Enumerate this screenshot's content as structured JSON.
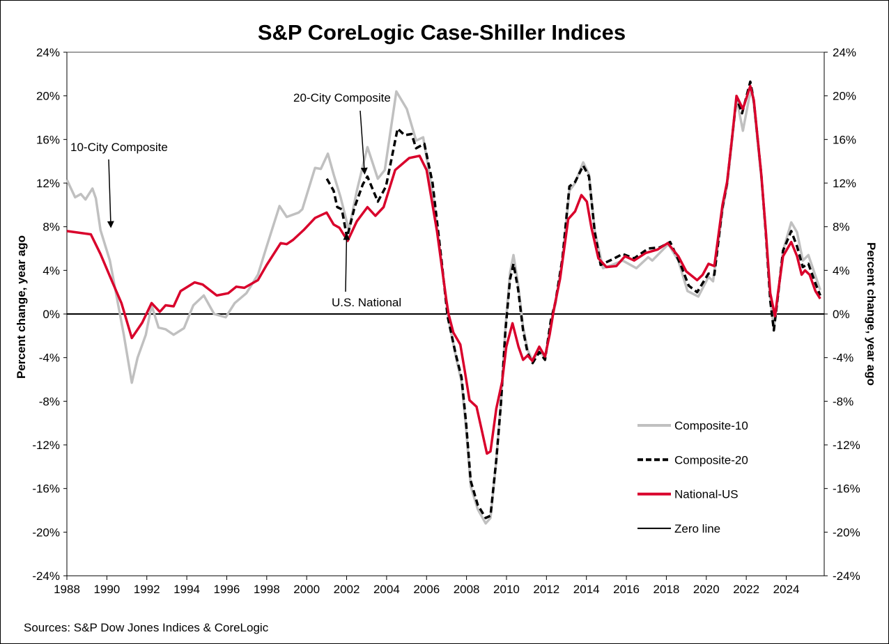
{
  "chart_data": {
    "type": "line",
    "title": "S&P CoreLogic Case-Shiller Indices",
    "ylabel_left": "Percent change, year ago",
    "ylabel_right": "Percent change, year ago",
    "source": "Sources:  S&P Dow Jones Indices & CoreLogic",
    "xlim": [
      1988,
      2025.9
    ],
    "ylim": [
      -24,
      24
    ],
    "x_ticks": [
      1988,
      1990,
      1992,
      1994,
      1996,
      1998,
      2000,
      2002,
      2004,
      2006,
      2008,
      2010,
      2012,
      2014,
      2016,
      2018,
      2020,
      2022,
      2024
    ],
    "y_ticks": [
      -24,
      -20,
      -16,
      -12,
      -8,
      -4,
      0,
      4,
      8,
      12,
      16,
      20,
      24
    ],
    "y_tick_format": "%",
    "grid": false,
    "legend_position": "bottom-right",
    "annotations": [
      {
        "text": "10-City Composite",
        "points_to": [
          1990.2,
          8.0
        ]
      },
      {
        "text": "20-City Composite",
        "points_to": [
          2002.9,
          12.9
        ]
      },
      {
        "text": "U.S. National",
        "points_to": [
          2002.0,
          7.3
        ]
      }
    ],
    "series": [
      {
        "name": "Composite-10",
        "color": "#c0c0c0",
        "style": "solid",
        "points": [
          [
            1988.0,
            12.3
          ],
          [
            1988.41,
            10.7
          ],
          [
            1988.7,
            11.0
          ],
          [
            1988.93,
            10.5
          ],
          [
            1989.28,
            11.5
          ],
          [
            1989.45,
            10.6
          ],
          [
            1989.68,
            7.7
          ],
          [
            1990.15,
            4.9
          ],
          [
            1990.5,
            1.5
          ],
          [
            1990.85,
            -1.9
          ],
          [
            1991.25,
            -6.3
          ],
          [
            1991.54,
            -4.0
          ],
          [
            1991.95,
            -1.9
          ],
          [
            1992.24,
            0.8
          ],
          [
            1992.59,
            -1.25
          ],
          [
            1992.94,
            -1.4
          ],
          [
            1993.34,
            -1.9
          ],
          [
            1993.86,
            -1.3
          ],
          [
            1994.33,
            0.8
          ],
          [
            1994.85,
            1.7
          ],
          [
            1995.37,
            0.0
          ],
          [
            1995.95,
            -0.3
          ],
          [
            1996.4,
            1.0
          ],
          [
            1996.98,
            1.9
          ],
          [
            1997.56,
            3.6
          ],
          [
            1998.0,
            6.2
          ],
          [
            1998.64,
            9.9
          ],
          [
            1999.0,
            8.9
          ],
          [
            1999.6,
            9.3
          ],
          [
            1999.78,
            9.6
          ],
          [
            2000.42,
            13.4
          ],
          [
            2000.71,
            13.3
          ],
          [
            2001.06,
            14.7
          ],
          [
            2001.35,
            12.8
          ],
          [
            2001.7,
            10.7
          ],
          [
            2002.11,
            7.7
          ],
          [
            2002.51,
            11.3
          ],
          [
            2003.04,
            15.3
          ],
          [
            2003.56,
            12.4
          ],
          [
            2003.91,
            13.2
          ],
          [
            2004.49,
            20.4
          ],
          [
            2005.01,
            18.8
          ],
          [
            2005.48,
            15.9
          ],
          [
            2005.83,
            16.2
          ],
          [
            2006.3,
            11.1
          ],
          [
            2006.76,
            4.5
          ],
          [
            2007.1,
            -0.5
          ],
          [
            2007.5,
            -4.2
          ],
          [
            2007.75,
            -6.2
          ],
          [
            2007.98,
            -10.5
          ],
          [
            2008.21,
            -15.8
          ],
          [
            2008.56,
            -17.9
          ],
          [
            2008.96,
            -19.2
          ],
          [
            2009.2,
            -18.7
          ],
          [
            2009.49,
            -13.5
          ],
          [
            2009.72,
            -8.2
          ],
          [
            2009.95,
            -1.2
          ],
          [
            2010.18,
            3.8
          ],
          [
            2010.35,
            5.4
          ],
          [
            2010.58,
            2.8
          ],
          [
            2010.83,
            -1.2
          ],
          [
            2011.06,
            -3.3
          ],
          [
            2011.31,
            -4.3
          ],
          [
            2011.64,
            -3.3
          ],
          [
            2011.93,
            -4.1
          ],
          [
            2012.22,
            -0.8
          ],
          [
            2012.45,
            0.9
          ],
          [
            2012.8,
            5.0
          ],
          [
            2013.15,
            11.3
          ],
          [
            2013.43,
            12.0
          ],
          [
            2013.84,
            13.9
          ],
          [
            2014.13,
            12.8
          ],
          [
            2014.42,
            7.6
          ],
          [
            2014.83,
            4.2
          ],
          [
            2015.29,
            4.5
          ],
          [
            2015.81,
            4.9
          ],
          [
            2016.5,
            4.2
          ],
          [
            2017.09,
            5.2
          ],
          [
            2017.3,
            4.9
          ],
          [
            2018.1,
            6.4
          ],
          [
            2018.6,
            4.9
          ],
          [
            2019.06,
            2.1
          ],
          [
            2019.6,
            1.6
          ],
          [
            2020.11,
            3.4
          ],
          [
            2020.34,
            3.0
          ],
          [
            2020.81,
            9.5
          ],
          [
            2021.04,
            11.8
          ],
          [
            2021.28,
            15.8
          ],
          [
            2021.51,
            19.8
          ],
          [
            2021.83,
            16.8
          ],
          [
            2022.14,
            19.8
          ],
          [
            2022.3,
            20.5
          ],
          [
            2022.42,
            18.5
          ],
          [
            2022.75,
            12.5
          ],
          [
            2022.98,
            7.5
          ],
          [
            2023.2,
            1.5
          ],
          [
            2023.38,
            -1.3
          ],
          [
            2023.6,
            1.8
          ],
          [
            2023.84,
            5.8
          ],
          [
            2024.25,
            8.4
          ],
          [
            2024.54,
            7.5
          ],
          [
            2024.83,
            4.9
          ],
          [
            2025.11,
            5.4
          ],
          [
            2025.46,
            3.5
          ],
          [
            2025.7,
            2.2
          ]
        ]
      },
      {
        "name": "Composite-20",
        "color": "#000000",
        "style": "dashed",
        "points": [
          [
            2001.01,
            12.4
          ],
          [
            2001.35,
            11.3
          ],
          [
            2001.53,
            9.8
          ],
          [
            2001.76,
            9.6
          ],
          [
            2002.02,
            7.0
          ],
          [
            2002.4,
            9.8
          ],
          [
            2002.81,
            11.9
          ],
          [
            2003.04,
            12.6
          ],
          [
            2003.56,
            10.3
          ],
          [
            2003.97,
            11.7
          ],
          [
            2004.55,
            17.0
          ],
          [
            2004.9,
            16.4
          ],
          [
            2005.25,
            16.5
          ],
          [
            2005.48,
            15.2
          ],
          [
            2005.89,
            15.6
          ],
          [
            2006.3,
            12.0
          ],
          [
            2006.76,
            4.7
          ],
          [
            2007.05,
            -0.2
          ],
          [
            2007.45,
            -3.6
          ],
          [
            2007.75,
            -5.8
          ],
          [
            2007.98,
            -10.0
          ],
          [
            2008.21,
            -15.3
          ],
          [
            2008.56,
            -17.5
          ],
          [
            2008.96,
            -18.7
          ],
          [
            2009.2,
            -18.5
          ],
          [
            2009.49,
            -13.4
          ],
          [
            2009.72,
            -8.3
          ],
          [
            2009.95,
            -1.5
          ],
          [
            2010.18,
            3.2
          ],
          [
            2010.35,
            4.6
          ],
          [
            2010.58,
            2.3
          ],
          [
            2010.83,
            -1.5
          ],
          [
            2011.06,
            -3.6
          ],
          [
            2011.31,
            -4.5
          ],
          [
            2011.64,
            -3.5
          ],
          [
            2011.93,
            -4.2
          ],
          [
            2012.22,
            -0.6
          ],
          [
            2012.45,
            1.1
          ],
          [
            2012.8,
            5.1
          ],
          [
            2013.15,
            11.7
          ],
          [
            2013.43,
            12.1
          ],
          [
            2013.84,
            13.6
          ],
          [
            2014.13,
            12.6
          ],
          [
            2014.42,
            7.5
          ],
          [
            2014.71,
            4.5
          ],
          [
            2015.29,
            5.0
          ],
          [
            2015.81,
            5.5
          ],
          [
            2016.39,
            5.1
          ],
          [
            2017.09,
            6.0
          ],
          [
            2017.67,
            6.1
          ],
          [
            2018.19,
            6.6
          ],
          [
            2018.72,
            4.5
          ],
          [
            2019.12,
            2.6
          ],
          [
            2019.54,
            2.0
          ],
          [
            2020.11,
            3.7
          ],
          [
            2020.4,
            3.6
          ],
          [
            2020.81,
            9.8
          ],
          [
            2021.04,
            12.0
          ],
          [
            2021.28,
            16.0
          ],
          [
            2021.51,
            19.8
          ],
          [
            2021.79,
            18.4
          ],
          [
            2022.2,
            21.3
          ],
          [
            2022.38,
            19.5
          ],
          [
            2022.75,
            12.8
          ],
          [
            2022.98,
            7.3
          ],
          [
            2023.2,
            1.2
          ],
          [
            2023.38,
            -1.5
          ],
          [
            2023.6,
            1.9
          ],
          [
            2023.84,
            5.8
          ],
          [
            2024.25,
            7.6
          ],
          [
            2024.54,
            6.2
          ],
          [
            2024.83,
            4.3
          ],
          [
            2025.11,
            4.6
          ],
          [
            2025.46,
            2.8
          ],
          [
            2025.7,
            1.7
          ]
        ]
      },
      {
        "name": "National-US",
        "color": "#d9002b",
        "style": "solid",
        "points": [
          [
            1988.0,
            7.6
          ],
          [
            1989.2,
            7.3
          ],
          [
            1989.68,
            5.5
          ],
          [
            1990.26,
            3.0
          ],
          [
            1990.73,
            1.0
          ],
          [
            1991.25,
            -2.2
          ],
          [
            1991.77,
            -0.8
          ],
          [
            1992.24,
            1.0
          ],
          [
            1992.65,
            0.2
          ],
          [
            1992.94,
            0.8
          ],
          [
            1993.34,
            0.7
          ],
          [
            1993.69,
            2.1
          ],
          [
            1994.39,
            2.9
          ],
          [
            1994.8,
            2.7
          ],
          [
            1995.5,
            1.7
          ],
          [
            1996.07,
            1.9
          ],
          [
            1996.48,
            2.5
          ],
          [
            1996.88,
            2.4
          ],
          [
            1997.56,
            3.1
          ],
          [
            1998.0,
            4.5
          ],
          [
            1998.7,
            6.5
          ],
          [
            1999.0,
            6.4
          ],
          [
            1999.32,
            6.8
          ],
          [
            1999.85,
            7.7
          ],
          [
            2000.42,
            8.8
          ],
          [
            2001.0,
            9.3
          ],
          [
            2001.35,
            8.2
          ],
          [
            2001.64,
            7.9
          ],
          [
            2002.05,
            6.7
          ],
          [
            2002.51,
            8.5
          ],
          [
            2003.04,
            9.8
          ],
          [
            2003.44,
            9.0
          ],
          [
            2003.85,
            9.8
          ],
          [
            2004.43,
            13.2
          ],
          [
            2005.13,
            14.3
          ],
          [
            2005.65,
            14.5
          ],
          [
            2006.0,
            13.2
          ],
          [
            2006.52,
            7.6
          ],
          [
            2006.99,
            1.3
          ],
          [
            2007.1,
            0.0
          ],
          [
            2007.34,
            -1.7
          ],
          [
            2007.69,
            -2.8
          ],
          [
            2007.92,
            -5.3
          ],
          [
            2008.15,
            -7.9
          ],
          [
            2008.5,
            -8.5
          ],
          [
            2008.73,
            -10.4
          ],
          [
            2009.02,
            -12.8
          ],
          [
            2009.2,
            -12.6
          ],
          [
            2009.49,
            -8.7
          ],
          [
            2009.78,
            -6.2
          ],
          [
            2009.99,
            -3.0
          ],
          [
            2010.3,
            -0.85
          ],
          [
            2010.6,
            -3.0
          ],
          [
            2010.83,
            -4.2
          ],
          [
            2011.06,
            -3.8
          ],
          [
            2011.29,
            -4.3
          ],
          [
            2011.64,
            -3.0
          ],
          [
            2011.93,
            -3.9
          ],
          [
            2012.16,
            -1.9
          ],
          [
            2012.39,
            0.6
          ],
          [
            2012.68,
            3.2
          ],
          [
            2013.09,
            8.7
          ],
          [
            2013.43,
            9.4
          ],
          [
            2013.75,
            10.9
          ],
          [
            2014.02,
            10.3
          ],
          [
            2014.25,
            7.9
          ],
          [
            2014.6,
            5.1
          ],
          [
            2015.0,
            4.3
          ],
          [
            2015.5,
            4.4
          ],
          [
            2015.93,
            5.3
          ],
          [
            2016.39,
            4.9
          ],
          [
            2016.97,
            5.6
          ],
          [
            2017.55,
            5.9
          ],
          [
            2018.07,
            6.5
          ],
          [
            2018.6,
            5.3
          ],
          [
            2019.0,
            3.9
          ],
          [
            2019.54,
            3.1
          ],
          [
            2019.82,
            3.6
          ],
          [
            2020.11,
            4.6
          ],
          [
            2020.4,
            4.4
          ],
          [
            2020.81,
            10.0
          ],
          [
            2021.04,
            12.1
          ],
          [
            2021.28,
            16.0
          ],
          [
            2021.51,
            20.0
          ],
          [
            2021.83,
            18.8
          ],
          [
            2022.2,
            20.9
          ],
          [
            2022.38,
            19.6
          ],
          [
            2022.75,
            12.8
          ],
          [
            2022.98,
            7.5
          ],
          [
            2023.2,
            1.9
          ],
          [
            2023.44,
            -0.2
          ],
          [
            2023.6,
            2.1
          ],
          [
            2023.84,
            5.3
          ],
          [
            2024.25,
            6.6
          ],
          [
            2024.54,
            5.3
          ],
          [
            2024.77,
            3.6
          ],
          [
            2024.94,
            4.0
          ],
          [
            2025.17,
            3.6
          ],
          [
            2025.46,
            2.1
          ],
          [
            2025.7,
            1.4
          ]
        ]
      }
    ],
    "zero_line": {
      "name": "Zero line",
      "color": "#000000",
      "value": 0
    }
  }
}
